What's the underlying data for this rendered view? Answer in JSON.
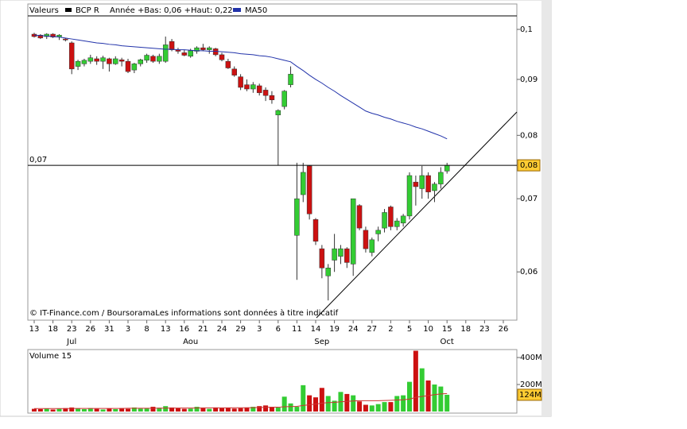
{
  "chart_data": {
    "type": "candlestick",
    "legend": {
      "title": "Valeurs",
      "symbol": "BCP R",
      "range": "Année +Bas: 0,06 +Haut: 0,22",
      "ma_name": "MA50"
    },
    "credit": "© IT-Finance.com / BoursoramaLes informations sont données à titre indicatif",
    "log_scale": true,
    "up_color": "#33cc33",
    "down_color": "#cc1111",
    "ma_color": "#2233aa",
    "categories": [
      "13",
      null,
      null,
      "18",
      null,
      null,
      "23",
      null,
      null,
      "26",
      null,
      null,
      "31",
      null,
      null,
      "3",
      null,
      null,
      "8",
      null,
      null,
      "13",
      null,
      null,
      "16",
      null,
      null,
      "21",
      null,
      null,
      "24",
      null,
      null,
      "29",
      null,
      null,
      "3",
      null,
      null,
      "6",
      null,
      null,
      "11",
      null,
      null,
      "14",
      null,
      null,
      "19",
      null,
      null,
      "24",
      null,
      null,
      "27",
      null,
      null,
      "2",
      null,
      null,
      "5",
      null,
      null,
      "10",
      null,
      null,
      "15",
      null,
      null,
      "18",
      null,
      null,
      "23",
      null,
      null,
      "26"
    ],
    "months": [
      null,
      null,
      null,
      null,
      null,
      null,
      "Jul",
      null,
      null,
      null,
      null,
      null,
      null,
      null,
      null,
      null,
      null,
      null,
      null,
      null,
      null,
      null,
      null,
      null,
      null,
      "Aou",
      null,
      null,
      null,
      null,
      null,
      null,
      null,
      null,
      null,
      null,
      null,
      null,
      null,
      null,
      null,
      null,
      null,
      null,
      null,
      null,
      "Sep",
      null,
      null,
      null,
      null,
      null,
      null,
      null,
      null,
      null,
      null,
      null,
      null,
      null,
      null,
      null,
      null,
      null,
      null,
      null,
      "Oct",
      null,
      null,
      null,
      null,
      null,
      null,
      null,
      null,
      null
    ],
    "open": [
      0.099,
      0.0988,
      0.0985,
      0.099,
      0.0984,
      0.098,
      0.0972,
      0.0925,
      0.093,
      0.0935,
      0.094,
      0.0935,
      0.094,
      0.093,
      0.0938,
      0.0935,
      0.0918,
      0.093,
      0.0937,
      0.0945,
      0.0935,
      0.0935,
      0.0975,
      0.0958,
      0.0952,
      0.0945,
      0.0955,
      0.0962,
      0.0958,
      0.096,
      0.0948,
      0.0935,
      0.092,
      0.0905,
      0.089,
      0.0882,
      0.0888,
      0.088,
      0.087,
      0.0835,
      0.085,
      0.089,
      0.0648,
      0.0706,
      0.075,
      0.067,
      0.063,
      0.0595,
      0.0615,
      0.062,
      0.063,
      0.061,
      0.069,
      0.0655,
      0.0625,
      0.065,
      0.0658,
      0.0688,
      0.066,
      0.0665,
      0.0675,
      0.0725,
      0.0715,
      0.0735,
      0.0712,
      0.0722,
      0.0742,
      null,
      null,
      null,
      null,
      null,
      null,
      null,
      null,
      null
    ],
    "high": [
      0.0993,
      0.099,
      0.0992,
      0.0992,
      0.099,
      0.0982,
      0.0975,
      0.0938,
      0.094,
      0.0948,
      0.0945,
      0.0946,
      0.0942,
      0.0945,
      0.0942,
      0.094,
      0.0932,
      0.094,
      0.095,
      0.0948,
      0.095,
      0.0985,
      0.098,
      0.0962,
      0.0958,
      0.096,
      0.0965,
      0.097,
      0.0965,
      0.0962,
      0.0952,
      0.094,
      0.0925,
      0.091,
      0.09,
      0.0895,
      0.0892,
      0.0885,
      0.0878,
      0.0845,
      0.088,
      0.0925,
      0.0755,
      0.0755,
      0.0751,
      0.0672,
      0.0635,
      0.061,
      0.065,
      0.0635,
      0.0632,
      0.07,
      0.0692,
      0.066,
      0.0645,
      0.066,
      0.0685,
      0.069,
      0.0672,
      0.0678,
      0.074,
      0.0735,
      0.075,
      0.074,
      0.0725,
      0.0748,
      0.0755,
      null,
      null,
      null,
      null,
      null,
      null,
      null,
      null,
      null
    ],
    "low": [
      0.0983,
      0.098,
      0.098,
      0.0982,
      0.0978,
      0.0975,
      0.091,
      0.0918,
      0.0925,
      0.093,
      0.0928,
      0.092,
      0.0915,
      0.0928,
      0.0925,
      0.0912,
      0.0912,
      0.0925,
      0.0932,
      0.0932,
      0.093,
      0.0932,
      0.0955,
      0.095,
      0.0945,
      0.0942,
      0.095,
      0.0955,
      0.095,
      0.0945,
      0.0935,
      0.092,
      0.0905,
      0.088,
      0.0878,
      0.0875,
      0.087,
      0.086,
      0.0855,
      0.0751,
      0.0845,
      0.0885,
      0.059,
      0.0695,
      0.067,
      0.0635,
      0.0592,
      0.0565,
      0.06,
      0.061,
      0.0605,
      0.0595,
      0.0655,
      0.0625,
      0.062,
      0.064,
      0.0652,
      0.0655,
      0.0655,
      0.066,
      0.067,
      0.069,
      0.07,
      0.07,
      0.0695,
      0.0715,
      0.0738,
      null,
      null,
      null,
      null,
      null,
      null,
      null,
      null,
      null
    ],
    "close": [
      0.0985,
      0.0982,
      0.099,
      0.0984,
      0.0988,
      0.0978,
      0.092,
      0.0935,
      0.0937,
      0.0942,
      0.0935,
      0.0942,
      0.093,
      0.094,
      0.0935,
      0.0915,
      0.093,
      0.0938,
      0.0947,
      0.0935,
      0.0945,
      0.0968,
      0.0958,
      0.0955,
      0.0947,
      0.0956,
      0.0962,
      0.0958,
      0.0962,
      0.0948,
      0.0938,
      0.0922,
      0.0908,
      0.0885,
      0.0882,
      0.089,
      0.0875,
      0.087,
      0.0862,
      0.0843,
      0.0878,
      0.091,
      0.07,
      0.074,
      0.0678,
      0.064,
      0.0605,
      0.0605,
      0.063,
      0.063,
      0.0612,
      0.07,
      0.0658,
      0.063,
      0.0642,
      0.0655,
      0.068,
      0.066,
      0.0668,
      0.0675,
      0.0735,
      0.0718,
      0.0735,
      0.071,
      0.0722,
      0.074,
      0.0751,
      null,
      null,
      null,
      null,
      null,
      null,
      null,
      null,
      null
    ],
    "ma": [
      0.0988,
      0.0987,
      0.0986,
      0.0985,
      0.0984,
      0.0982,
      0.098,
      0.0978,
      0.0976,
      0.0974,
      0.0972,
      0.0971,
      0.0969,
      0.0968,
      0.0966,
      0.0965,
      0.0964,
      0.0963,
      0.0962,
      0.0961,
      0.096,
      0.0959,
      0.0959,
      0.0958,
      0.0958,
      0.0957,
      0.0956,
      0.0956,
      0.0955,
      0.0955,
      0.0954,
      0.0953,
      0.0952,
      0.095,
      0.0949,
      0.0948,
      0.0946,
      0.0945,
      0.0943,
      0.094,
      0.0937,
      0.0934,
      0.0925,
      0.0917,
      0.0908,
      0.09,
      0.0893,
      0.0885,
      0.0878,
      0.087,
      0.0863,
      0.0856,
      0.0849,
      0.0842,
      0.0838,
      0.0835,
      0.0831,
      0.0828,
      0.0824,
      0.0821,
      0.0818,
      0.0814,
      0.0811,
      0.0807,
      0.0803,
      0.0799,
      0.0794,
      null,
      null,
      null,
      null,
      null,
      null,
      null,
      null,
      null
    ],
    "ylim": [
      0.0542,
      0.1055
    ],
    "yticks": [
      {
        "value": 0.1,
        "label": "0,1"
      },
      {
        "value": 0.09,
        "label": "0,09"
      },
      {
        "value": 0.08,
        "label": "0,08"
      },
      {
        "value": 0.07,
        "label": "0,07"
      },
      {
        "value": 0.06,
        "label": "0,06"
      }
    ],
    "last_price": {
      "value": 0.0751,
      "label": "0,08"
    },
    "level_label": "0,07",
    "volume": {
      "title": "Volume 15",
      "values": [
        20,
        18,
        22,
        15,
        20,
        25,
        30,
        22,
        18,
        25,
        20,
        15,
        22,
        18,
        25,
        20,
        30,
        22,
        25,
        35,
        28,
        40,
        30,
        25,
        20,
        22,
        35,
        25,
        20,
        30,
        25,
        28,
        22,
        25,
        30,
        35,
        40,
        45,
        35,
        30,
        110,
        60,
        35,
        195,
        120,
        105,
        175,
        115,
        80,
        145,
        130,
        120,
        75,
        50,
        45,
        55,
        70,
        70,
        115,
        120,
        220,
        450,
        320,
        230,
        200,
        185,
        124,
        null,
        null,
        null,
        null,
        null,
        null,
        null,
        null,
        null
      ],
      "ma_values": [
        22,
        22,
        22,
        22,
        22,
        22,
        23,
        23,
        23,
        23,
        23,
        23,
        23,
        23,
        23,
        24,
        24,
        24,
        24,
        24,
        25,
        25,
        26,
        26,
        26,
        26,
        26,
        27,
        27,
        27,
        27,
        27,
        28,
        28,
        28,
        29,
        30,
        31,
        32,
        32,
        35,
        37,
        38,
        45,
        50,
        55,
        62,
        66,
        68,
        72,
        75,
        78,
        80,
        80,
        80,
        80,
        82,
        83,
        85,
        87,
        92,
        105,
        112,
        118,
        125,
        130,
        133,
        null,
        null,
        null,
        null,
        null,
        null,
        null,
        null,
        null
      ],
      "ma_color": "#cc3333",
      "ylim": [
        0,
        459
      ],
      "yticks": [
        {
          "value": 400,
          "label": "400M"
        },
        {
          "value": 200,
          "label": "200M"
        }
      ],
      "last": {
        "value": 124,
        "label": "124M"
      }
    }
  }
}
